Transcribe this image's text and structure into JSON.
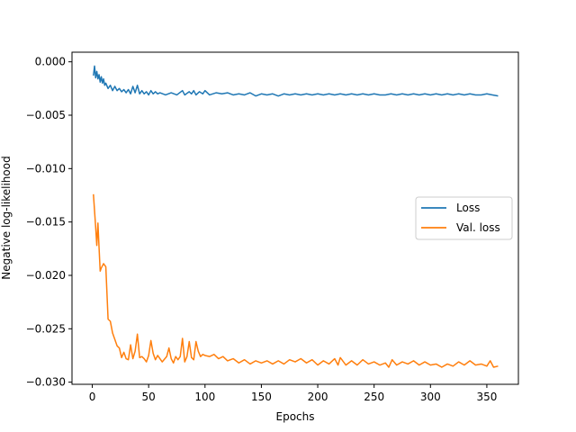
{
  "chart_data": {
    "type": "line",
    "title": "",
    "xlabel": "Epochs",
    "ylabel": "Negative log-likelihood",
    "xlim": [
      -18,
      378
    ],
    "ylim": [
      -0.0302,
      0.0009
    ],
    "x_ticks": [
      0,
      50,
      100,
      150,
      200,
      250,
      300,
      350
    ],
    "x_tick_labels": [
      "0",
      "50",
      "100",
      "150",
      "200",
      "250",
      "300",
      "350"
    ],
    "y_ticks": [
      0.0,
      -0.005,
      -0.01,
      -0.015,
      -0.02,
      -0.025,
      -0.03
    ],
    "y_tick_labels": [
      "0.000",
      "−0.005",
      "−0.010",
      "−0.015",
      "−0.020",
      "−0.025",
      "−0.030"
    ],
    "grid": false,
    "legend_position": "center-right",
    "series": [
      {
        "name": "Loss",
        "color": "#1f77b4",
        "points": [
          [
            1,
            -0.0013
          ],
          [
            2,
            -0.0004
          ],
          [
            3,
            -0.0015
          ],
          [
            4,
            -0.0009
          ],
          [
            5,
            -0.0016
          ],
          [
            6,
            -0.0012
          ],
          [
            7,
            -0.0019
          ],
          [
            8,
            -0.0014
          ],
          [
            9,
            -0.002
          ],
          [
            10,
            -0.0016
          ],
          [
            11,
            -0.0022
          ],
          [
            12,
            -0.002
          ],
          [
            14,
            -0.0025
          ],
          [
            16,
            -0.0022
          ],
          [
            18,
            -0.0027
          ],
          [
            20,
            -0.0023
          ],
          [
            22,
            -0.0027
          ],
          [
            24,
            -0.0025
          ],
          [
            26,
            -0.0028
          ],
          [
            28,
            -0.0026
          ],
          [
            30,
            -0.0029
          ],
          [
            32,
            -0.0026
          ],
          [
            34,
            -0.003
          ],
          [
            36,
            -0.0023
          ],
          [
            38,
            -0.0029
          ],
          [
            40,
            -0.0022
          ],
          [
            42,
            -0.003
          ],
          [
            44,
            -0.0027
          ],
          [
            46,
            -0.003
          ],
          [
            48,
            -0.0028
          ],
          [
            50,
            -0.0031
          ],
          [
            52,
            -0.0027
          ],
          [
            54,
            -0.003
          ],
          [
            56,
            -0.0028
          ],
          [
            58,
            -0.003
          ],
          [
            60,
            -0.0029
          ],
          [
            65,
            -0.0031
          ],
          [
            70,
            -0.0029
          ],
          [
            75,
            -0.0031
          ],
          [
            80,
            -0.0027
          ],
          [
            82,
            -0.0031
          ],
          [
            86,
            -0.0028
          ],
          [
            88,
            -0.003
          ],
          [
            90,
            -0.0027
          ],
          [
            92,
            -0.0031
          ],
          [
            95,
            -0.0028
          ],
          [
            98,
            -0.003
          ],
          [
            100,
            -0.0027
          ],
          [
            104,
            -0.0031
          ],
          [
            110,
            -0.0029
          ],
          [
            115,
            -0.003
          ],
          [
            120,
            -0.0029
          ],
          [
            125,
            -0.0031
          ],
          [
            130,
            -0.003
          ],
          [
            135,
            -0.0031
          ],
          [
            140,
            -0.0029
          ],
          [
            145,
            -0.0032
          ],
          [
            150,
            -0.003
          ],
          [
            155,
            -0.0031
          ],
          [
            160,
            -0.003
          ],
          [
            165,
            -0.0032
          ],
          [
            170,
            -0.003
          ],
          [
            175,
            -0.0031
          ],
          [
            180,
            -0.003
          ],
          [
            185,
            -0.0031
          ],
          [
            190,
            -0.003
          ],
          [
            195,
            -0.0031
          ],
          [
            200,
            -0.003
          ],
          [
            205,
            -0.0031
          ],
          [
            210,
            -0.003
          ],
          [
            215,
            -0.0031
          ],
          [
            220,
            -0.003
          ],
          [
            225,
            -0.0031
          ],
          [
            230,
            -0.003
          ],
          [
            235,
            -0.0031
          ],
          [
            240,
            -0.003
          ],
          [
            245,
            -0.0031
          ],
          [
            250,
            -0.003
          ],
          [
            255,
            -0.0031
          ],
          [
            260,
            -0.0031
          ],
          [
            265,
            -0.003
          ],
          [
            270,
            -0.0031
          ],
          [
            275,
            -0.003
          ],
          [
            280,
            -0.0031
          ],
          [
            285,
            -0.003
          ],
          [
            290,
            -0.0031
          ],
          [
            295,
            -0.003
          ],
          [
            300,
            -0.0031
          ],
          [
            305,
            -0.003
          ],
          [
            310,
            -0.0031
          ],
          [
            315,
            -0.003
          ],
          [
            320,
            -0.0031
          ],
          [
            325,
            -0.003
          ],
          [
            330,
            -0.0031
          ],
          [
            335,
            -0.003
          ],
          [
            340,
            -0.0031
          ],
          [
            345,
            -0.0031
          ],
          [
            350,
            -0.003
          ],
          [
            355,
            -0.0031
          ],
          [
            360,
            -0.0032
          ]
        ]
      },
      {
        "name": "Val. loss",
        "color": "#ff7f0e",
        "points": [
          [
            1,
            -0.0124
          ],
          [
            3,
            -0.0155
          ],
          [
            4,
            -0.0172
          ],
          [
            5,
            -0.0151
          ],
          [
            6,
            -0.0174
          ],
          [
            7,
            -0.0196
          ],
          [
            8,
            -0.0193
          ],
          [
            10,
            -0.0189
          ],
          [
            12,
            -0.0192
          ],
          [
            14,
            -0.0241
          ],
          [
            16,
            -0.0243
          ],
          [
            18,
            -0.0254
          ],
          [
            20,
            -0.026
          ],
          [
            22,
            -0.0266
          ],
          [
            24,
            -0.0268
          ],
          [
            26,
            -0.0277
          ],
          [
            28,
            -0.0272
          ],
          [
            30,
            -0.0278
          ],
          [
            32,
            -0.0279
          ],
          [
            34,
            -0.0265
          ],
          [
            36,
            -0.0278
          ],
          [
            38,
            -0.0271
          ],
          [
            40,
            -0.0255
          ],
          [
            42,
            -0.0277
          ],
          [
            44,
            -0.0276
          ],
          [
            46,
            -0.0278
          ],
          [
            48,
            -0.0281
          ],
          [
            50,
            -0.0275
          ],
          [
            52,
            -0.0261
          ],
          [
            54,
            -0.0273
          ],
          [
            56,
            -0.0279
          ],
          [
            58,
            -0.0275
          ],
          [
            62,
            -0.0281
          ],
          [
            66,
            -0.0276
          ],
          [
            68,
            -0.0268
          ],
          [
            70,
            -0.0278
          ],
          [
            72,
            -0.0282
          ],
          [
            74,
            -0.0276
          ],
          [
            76,
            -0.0279
          ],
          [
            78,
            -0.0276
          ],
          [
            80,
            -0.0259
          ],
          [
            82,
            -0.0281
          ],
          [
            84,
            -0.0276
          ],
          [
            86,
            -0.0262
          ],
          [
            88,
            -0.0277
          ],
          [
            90,
            -0.0279
          ],
          [
            92,
            -0.0262
          ],
          [
            94,
            -0.0271
          ],
          [
            96,
            -0.0276
          ],
          [
            98,
            -0.0274
          ],
          [
            100,
            -0.0275
          ],
          [
            104,
            -0.0276
          ],
          [
            108,
            -0.0274
          ],
          [
            112,
            -0.0278
          ],
          [
            116,
            -0.0276
          ],
          [
            120,
            -0.028
          ],
          [
            125,
            -0.0278
          ],
          [
            130,
            -0.0282
          ],
          [
            135,
            -0.0279
          ],
          [
            140,
            -0.0283
          ],
          [
            145,
            -0.028
          ],
          [
            150,
            -0.0282
          ],
          [
            155,
            -0.028
          ],
          [
            160,
            -0.0283
          ],
          [
            165,
            -0.028
          ],
          [
            170,
            -0.0283
          ],
          [
            175,
            -0.0279
          ],
          [
            180,
            -0.0281
          ],
          [
            185,
            -0.0278
          ],
          [
            190,
            -0.0282
          ],
          [
            195,
            -0.0279
          ],
          [
            200,
            -0.0284
          ],
          [
            205,
            -0.028
          ],
          [
            210,
            -0.0283
          ],
          [
            215,
            -0.0278
          ],
          [
            218,
            -0.0284
          ],
          [
            220,
            -0.0277
          ],
          [
            225,
            -0.0284
          ],
          [
            230,
            -0.028
          ],
          [
            235,
            -0.0284
          ],
          [
            240,
            -0.0279
          ],
          [
            245,
            -0.0283
          ],
          [
            250,
            -0.0281
          ],
          [
            255,
            -0.0284
          ],
          [
            260,
            -0.0282
          ],
          [
            263,
            -0.0286
          ],
          [
            266,
            -0.0279
          ],
          [
            270,
            -0.0284
          ],
          [
            275,
            -0.0281
          ],
          [
            280,
            -0.0283
          ],
          [
            285,
            -0.028
          ],
          [
            290,
            -0.0284
          ],
          [
            295,
            -0.0281
          ],
          [
            300,
            -0.0284
          ],
          [
            305,
            -0.0283
          ],
          [
            310,
            -0.0286
          ],
          [
            315,
            -0.0283
          ],
          [
            320,
            -0.0285
          ],
          [
            325,
            -0.0281
          ],
          [
            330,
            -0.0284
          ],
          [
            335,
            -0.028
          ],
          [
            340,
            -0.0284
          ],
          [
            345,
            -0.0283
          ],
          [
            350,
            -0.0285
          ],
          [
            353,
            -0.028
          ],
          [
            356,
            -0.0286
          ],
          [
            360,
            -0.0285
          ]
        ]
      }
    ]
  }
}
